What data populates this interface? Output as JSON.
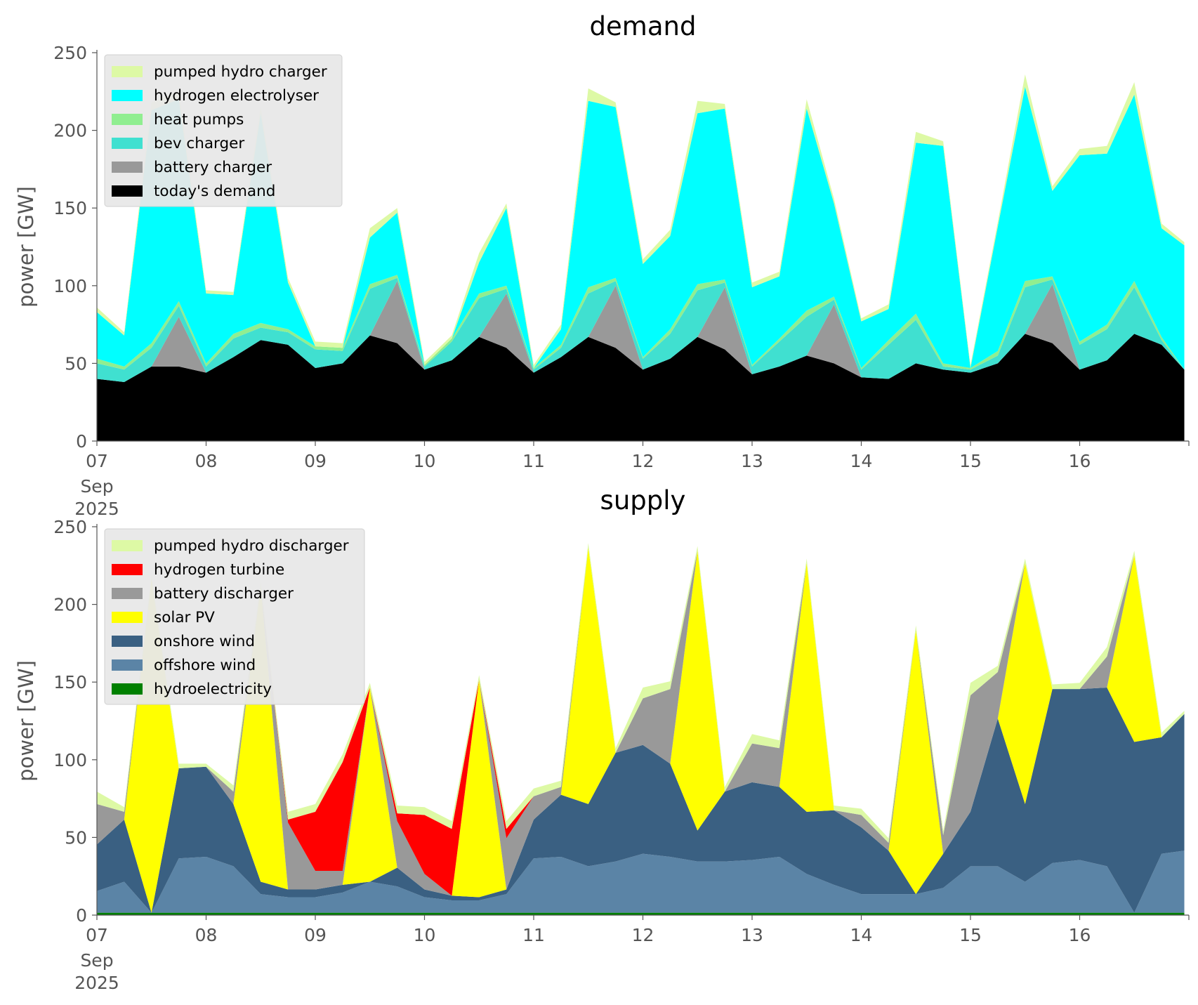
{
  "chart_data": [
    {
      "type": "area",
      "stacked": true,
      "title": "demand",
      "ylabel": "power [GW]",
      "xlabel": "",
      "ylim": [
        0,
        250
      ],
      "xlim": [
        "2025-09-07",
        "2025-09-17"
      ],
      "x_ticks": [
        "07",
        "08",
        "09",
        "10",
        "11",
        "12",
        "13",
        "14",
        "15",
        "16"
      ],
      "x_tick_sublabel": [
        "Sep",
        "2025"
      ],
      "y_ticks": [
        "0",
        "50",
        "100",
        "150",
        "200",
        "250"
      ],
      "grid": false,
      "legend_position": "upper-left",
      "x": [
        "2025-09-07 00:00",
        "2025-09-07 06:00",
        "2025-09-07 12:00",
        "2025-09-07 18:00",
        "2025-09-08 00:00",
        "2025-09-08 06:00",
        "2025-09-08 12:00",
        "2025-09-08 18:00",
        "2025-09-09 00:00",
        "2025-09-09 06:00",
        "2025-09-09 12:00",
        "2025-09-09 18:00",
        "2025-09-10 00:00",
        "2025-09-10 06:00",
        "2025-09-10 12:00",
        "2025-09-10 18:00",
        "2025-09-11 00:00",
        "2025-09-11 06:00",
        "2025-09-11 12:00",
        "2025-09-11 18:00",
        "2025-09-12 00:00",
        "2025-09-12 06:00",
        "2025-09-12 12:00",
        "2025-09-12 18:00",
        "2025-09-13 00:00",
        "2025-09-13 06:00",
        "2025-09-13 12:00",
        "2025-09-13 18:00",
        "2025-09-14 00:00",
        "2025-09-14 06:00",
        "2025-09-14 12:00",
        "2025-09-14 18:00",
        "2025-09-15 00:00",
        "2025-09-15 06:00",
        "2025-09-15 12:00",
        "2025-09-15 18:00",
        "2025-09-16 00:00",
        "2025-09-16 06:00",
        "2025-09-16 12:00",
        "2025-09-16 18:00",
        "2025-09-16 23:00"
      ],
      "series": [
        {
          "name": "today's demand",
          "color": "#000000",
          "values": [
            40,
            38,
            48,
            48,
            44,
            54,
            65,
            62,
            47,
            50,
            68,
            63,
            46,
            52,
            67,
            60,
            44,
            54,
            67,
            60,
            46,
            53,
            67,
            59,
            43,
            48,
            55,
            50,
            41,
            40,
            50,
            46,
            44,
            50,
            69,
            63,
            46,
            52,
            69,
            62,
            46
          ]
        },
        {
          "name": "battery charger",
          "color": "#999999",
          "values": [
            0,
            0,
            0,
            32,
            0,
            0,
            0,
            0,
            0,
            0,
            0,
            40,
            0,
            0,
            0,
            35,
            0,
            0,
            0,
            40,
            0,
            0,
            0,
            40,
            0,
            0,
            0,
            38,
            0,
            0,
            0,
            0,
            0,
            0,
            0,
            38,
            0,
            0,
            0,
            0,
            0
          ]
        },
        {
          "name": "bev charger",
          "color": "#40e0d0",
          "values": [
            10,
            8,
            12,
            7,
            4,
            12,
            8,
            8,
            12,
            8,
            30,
            2,
            2,
            12,
            25,
            3,
            2,
            6,
            28,
            3,
            7,
            16,
            30,
            3,
            5,
            16,
            25,
            3,
            5,
            22,
            28,
            2,
            2,
            5,
            30,
            3,
            16,
            20,
            30,
            3,
            0
          ]
        },
        {
          "name": "heat pumps",
          "color": "#90ee90",
          "values": [
            3,
            2,
            3,
            3,
            2,
            3,
            3,
            2,
            2,
            2,
            3,
            2,
            1,
            2,
            3,
            2,
            1,
            2,
            4,
            2,
            1,
            3,
            4,
            2,
            1,
            2,
            4,
            2,
            1,
            3,
            4,
            2,
            1,
            3,
            4,
            2,
            2,
            3,
            4,
            2,
            0
          ]
        },
        {
          "name": "hydrogen electrolyser",
          "color": "#00ffff",
          "values": [
            30,
            20,
            150,
            130,
            45,
            25,
            135,
            30,
            0,
            0,
            30,
            40,
            0,
            0,
            20,
            50,
            0,
            10,
            120,
            110,
            60,
            60,
            110,
            110,
            50,
            40,
            130,
            60,
            30,
            20,
            110,
            140,
            0,
            80,
            125,
            55,
            120,
            110,
            120,
            70,
            80
          ]
        },
        {
          "name": "pumped hydro charger",
          "color": "#ddf9a5",
          "values": [
            3,
            2,
            5,
            5,
            2,
            2,
            4,
            3,
            3,
            3,
            6,
            3,
            2,
            2,
            6,
            3,
            2,
            3,
            8,
            3,
            3,
            4,
            8,
            3,
            3,
            3,
            6,
            3,
            2,
            3,
            7,
            3,
            2,
            3,
            8,
            3,
            4,
            5,
            8,
            3,
            2
          ]
        }
      ]
    },
    {
      "type": "area",
      "stacked": true,
      "title": "supply",
      "ylabel": "power [GW]",
      "xlabel": "",
      "ylim": [
        0,
        250
      ],
      "xlim": [
        "2025-09-07",
        "2025-09-17"
      ],
      "x_ticks": [
        "07",
        "08",
        "09",
        "10",
        "11",
        "12",
        "13",
        "14",
        "15",
        "16"
      ],
      "x_tick_sublabel": [
        "Sep",
        "2025"
      ],
      "y_ticks": [
        "0",
        "50",
        "100",
        "150",
        "200",
        "250"
      ],
      "grid": false,
      "legend_position": "upper-left",
      "x": [
        "2025-09-07 00:00",
        "2025-09-07 06:00",
        "2025-09-07 12:00",
        "2025-09-07 18:00",
        "2025-09-08 00:00",
        "2025-09-08 06:00",
        "2025-09-08 12:00",
        "2025-09-08 18:00",
        "2025-09-09 00:00",
        "2025-09-09 06:00",
        "2025-09-09 12:00",
        "2025-09-09 18:00",
        "2025-09-10 00:00",
        "2025-09-10 06:00",
        "2025-09-10 12:00",
        "2025-09-10 18:00",
        "2025-09-11 00:00",
        "2025-09-11 06:00",
        "2025-09-11 12:00",
        "2025-09-11 18:00",
        "2025-09-12 00:00",
        "2025-09-12 06:00",
        "2025-09-12 12:00",
        "2025-09-12 18:00",
        "2025-09-13 00:00",
        "2025-09-13 06:00",
        "2025-09-13 12:00",
        "2025-09-13 18:00",
        "2025-09-14 00:00",
        "2025-09-14 06:00",
        "2025-09-14 12:00",
        "2025-09-14 18:00",
        "2025-09-15 00:00",
        "2025-09-15 06:00",
        "2025-09-15 12:00",
        "2025-09-15 18:00",
        "2025-09-16 00:00",
        "2025-09-16 06:00",
        "2025-09-16 12:00",
        "2025-09-16 18:00",
        "2025-09-16 23:00"
      ],
      "series": [
        {
          "name": "hydroelectricity",
          "color": "#008000",
          "values": [
            1.5,
            1.5,
            1.5,
            1.5,
            1.5,
            1.5,
            1.5,
            1.5,
            1.5,
            1.5,
            1.5,
            1.5,
            1.5,
            1.5,
            1.5,
            1.5,
            1.5,
            1.5,
            1.5,
            1.5,
            1.5,
            1.5,
            1.5,
            1.5,
            1.5,
            1.5,
            1.5,
            1.5,
            1.5,
            1.5,
            1.5,
            1.5,
            1.5,
            1.5,
            1.5,
            1.5,
            1.5,
            1.5,
            1.5,
            1.5,
            1.5
          ]
        },
        {
          "name": "offshore wind",
          "color": "#5b84a6",
          "values": [
            14,
            20,
            0,
            35,
            36,
            30,
            12,
            10,
            10,
            13,
            20,
            17,
            10,
            8,
            8,
            12,
            35,
            36,
            30,
            33,
            38,
            36,
            33,
            33,
            34,
            36,
            25,
            18,
            12,
            12,
            12,
            16,
            30,
            30,
            20,
            32,
            34,
            30,
            0,
            38,
            40
          ]
        },
        {
          "name": "onshore wind",
          "color": "#3a6082",
          "values": [
            30,
            40,
            0,
            58,
            58,
            40,
            8,
            5,
            5,
            5,
            0,
            12,
            5,
            3,
            2,
            3,
            25,
            40,
            40,
            70,
            70,
            60,
            20,
            45,
            50,
            45,
            40,
            48,
            43,
            28,
            0,
            22,
            35,
            95,
            50,
            112,
            110,
            115,
            110,
            75,
            88
          ]
        },
        {
          "name": "solar PV",
          "color": "#ffff00",
          "values": [
            0,
            0,
            215,
            0,
            0,
            0,
            190,
            0,
            0,
            0,
            125,
            0,
            0,
            0,
            140,
            0,
            0,
            0,
            165,
            0,
            0,
            0,
            180,
            0,
            0,
            0,
            160,
            0,
            0,
            0,
            170,
            0,
            0,
            0,
            155,
            0,
            0,
            0,
            120,
            0,
            0
          ]
        },
        {
          "name": "battery discharger",
          "color": "#999999",
          "values": [
            26,
            5,
            0,
            0,
            0,
            8,
            0,
            43,
            12,
            9,
            0,
            30,
            10,
            0,
            0,
            33,
            15,
            5,
            0,
            0,
            30,
            48,
            0,
            0,
            25,
            25,
            0,
            0,
            8,
            5,
            0,
            12,
            75,
            30,
            0,
            0,
            0,
            20,
            0,
            0,
            0
          ]
        },
        {
          "name": "hydrogen turbine",
          "color": "#ff0000",
          "values": [
            0,
            0,
            0,
            0,
            0,
            0,
            0,
            2,
            38,
            70,
            0,
            5,
            38,
            43,
            0,
            6,
            0,
            0,
            0,
            0,
            0,
            0,
            0,
            0,
            0,
            0,
            0,
            0,
            0,
            0,
            0,
            0,
            0,
            0,
            0,
            0,
            0,
            0,
            0,
            0,
            0
          ]
        },
        {
          "name": "pumped hydro discharger",
          "color": "#ddf9a5",
          "values": [
            8,
            3,
            3,
            3,
            2,
            4,
            3,
            5,
            5,
            5,
            3,
            5,
            5,
            5,
            3,
            5,
            5,
            4,
            3,
            3,
            7,
            5,
            3,
            3,
            6,
            5,
            3,
            3,
            4,
            3,
            3,
            3,
            8,
            4,
            3,
            3,
            4,
            6,
            3,
            3,
            2
          ]
        }
      ]
    }
  ]
}
